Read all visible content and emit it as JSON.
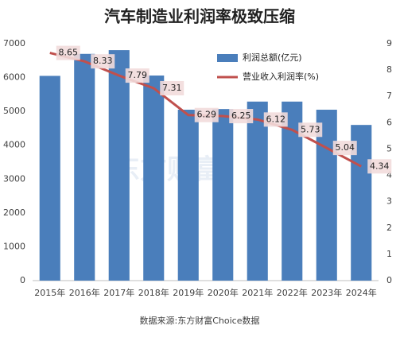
{
  "chart_data": {
    "type": "bar",
    "title": "汽车制造业利润率极致压缩",
    "source": "数据来源:东方财富Choice数据",
    "watermark": "东方财富",
    "categories": [
      "2015年",
      "2016年",
      "2017年",
      "2018年",
      "2019年",
      "2020年",
      "2021年",
      "2022年",
      "2023年",
      "2024年"
    ],
    "series": [
      {
        "name": "利润总额(亿元)",
        "type": "bar",
        "color": "#4a7ebb",
        "axis": "y",
        "values": [
          6050,
          6700,
          6810,
          6060,
          5050,
          5070,
          5290,
          5290,
          5050,
          4600
        ]
      },
      {
        "name": "营业收入利润率(%)",
        "type": "line",
        "color": "#c0504d",
        "axis": "y2",
        "values": [
          8.65,
          8.33,
          7.79,
          7.31,
          6.29,
          6.25,
          6.12,
          5.73,
          5.04,
          4.34
        ]
      }
    ],
    "ylim": [
      0,
      7000
    ],
    "yticks": [
      0,
      1000,
      2000,
      3000,
      4000,
      5000,
      6000,
      7000
    ],
    "y2lim": [
      0,
      9
    ],
    "y2ticks": [
      0,
      1,
      2,
      3,
      4,
      5,
      6,
      7,
      8,
      9
    ],
    "legend": "top-right",
    "grid": false
  }
}
